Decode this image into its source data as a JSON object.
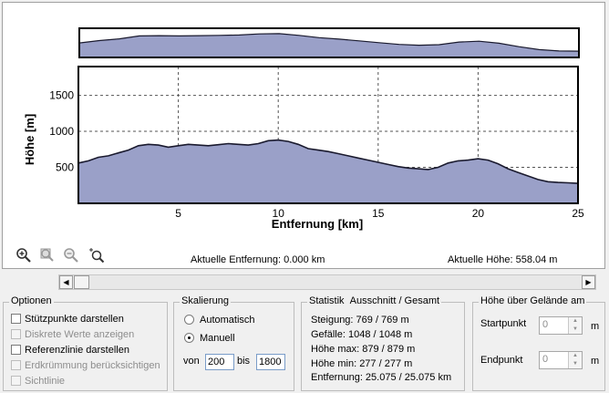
{
  "chart": {
    "ylabel": "Höhe [m]",
    "xlabel": "Entfernung [km]",
    "fill_color": "#9aa0c8",
    "line_color": "#1a1a2e"
  },
  "chart_data": {
    "type": "area",
    "xlabel": "Entfernung [km]",
    "ylabel": "Höhe [m]",
    "xlim": [
      0,
      25
    ],
    "ylim": [
      0,
      1900
    ],
    "x_ticks": [
      "5",
      "10",
      "15",
      "20",
      "25"
    ],
    "y_ticks": [
      "500",
      "1000",
      "1500"
    ],
    "grid": true,
    "x": [
      0,
      0.5,
      1,
      1.5,
      2,
      2.5,
      3,
      3.5,
      4,
      4.5,
      5,
      5.5,
      6,
      6.5,
      7,
      7.5,
      8,
      8.5,
      9,
      9.5,
      10,
      10.5,
      11,
      11.5,
      12,
      12.5,
      13,
      13.5,
      14,
      14.5,
      15,
      15.5,
      16,
      16.5,
      17,
      17.5,
      18,
      18.5,
      19,
      19.5,
      20,
      20.5,
      21,
      21.5,
      22,
      22.5,
      23,
      23.5,
      24,
      24.5,
      25.075
    ],
    "values": [
      560,
      590,
      640,
      660,
      700,
      740,
      800,
      820,
      810,
      780,
      800,
      820,
      810,
      800,
      815,
      830,
      820,
      810,
      830,
      870,
      879,
      860,
      820,
      760,
      740,
      720,
      690,
      660,
      630,
      600,
      570,
      540,
      510,
      490,
      480,
      470,
      500,
      560,
      590,
      600,
      620,
      600,
      550,
      480,
      430,
      380,
      330,
      300,
      290,
      285,
      277
    ]
  },
  "overview": {
    "x": [
      0,
      1,
      2,
      3,
      4,
      5,
      6,
      7,
      8,
      9,
      10,
      11,
      12,
      13,
      14,
      15,
      16,
      17,
      18,
      19,
      20,
      21,
      22,
      23,
      24,
      25.075
    ],
    "values": [
      560,
      640,
      700,
      800,
      810,
      800,
      810,
      820,
      830,
      870,
      879,
      820,
      740,
      690,
      630,
      570,
      510,
      480,
      500,
      590,
      620,
      550,
      430,
      330,
      285,
      277
    ]
  },
  "tools": {
    "zoom_in": "zoom-in-icon",
    "zoom_reset": "zoom-fit-icon",
    "zoom_out": "zoom-out-icon",
    "zoom_select": "zoom-select-icon"
  },
  "readouts": {
    "entfernung": "Aktuelle Entfernung: 0.000 km",
    "hoehe": "Aktuelle Höhe: 558.04 m"
  },
  "optionen": {
    "title": "Optionen",
    "items": [
      {
        "label": "Stützpunkte darstellen",
        "checked": false,
        "enabled": true
      },
      {
        "label": "Diskrete Werte anzeigen",
        "checked": false,
        "enabled": false
      },
      {
        "label": "Referenzlinie darstellen",
        "checked": false,
        "enabled": true
      },
      {
        "label": "Erdkrümmung berücksichtigen",
        "checked": false,
        "enabled": false
      },
      {
        "label": "Sichtlinie",
        "checked": false,
        "enabled": false
      }
    ]
  },
  "skalierung": {
    "title": "Skalierung",
    "auto_label": "Automatisch",
    "manual_label": "Manuell",
    "selected": "Manuell",
    "von_label": "von",
    "von_value": "200",
    "bis_label": "bis",
    "bis_value": "1800"
  },
  "statistik": {
    "title": "Statistik",
    "subtitle": "Ausschnitt / Gesamt",
    "steigung": "Steigung: 769 / 769 m",
    "gefaelle": "Gefälle: 1048 / 1048 m",
    "hoehe_max": "Höhe max: 879 / 879 m",
    "hoehe_min": "Höhe min: 277 / 277 m",
    "entfernung": "Entfernung: 25.075 / 25.075 km"
  },
  "gelaende": {
    "title": "Höhe über Gelände am",
    "start_label": "Startpunkt",
    "start_value": "0",
    "start_unit": "m",
    "end_label": "Endpunkt",
    "end_value": "0",
    "end_unit": "m"
  }
}
